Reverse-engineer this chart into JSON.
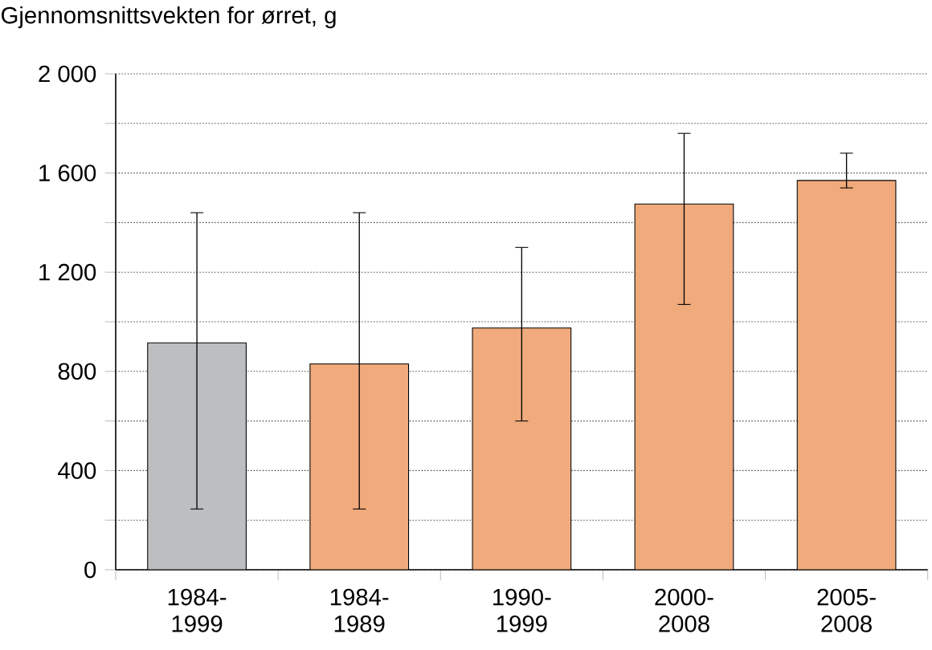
{
  "chart_data": {
    "type": "bar",
    "ylabel": "Gjennomsnittsvekten for ørret, g",
    "categories": [
      "1984-1999",
      "1984-1989",
      "1990-1999",
      "2000-2008",
      "2005-2008"
    ],
    "values": [
      915,
      830,
      975,
      1475,
      1570
    ],
    "colors": [
      "#bcbec0",
      "#f0aa7b",
      "#f0aa7b",
      "#f0aa7b",
      "#f0aa7b"
    ],
    "errors": [
      [
        245,
        1440
      ],
      [
        245,
        1440
      ],
      [
        600,
        1300
      ],
      [
        1070,
        1760
      ],
      [
        1540,
        1680
      ]
    ],
    "ylim": [
      0,
      2000
    ],
    "yticks": [
      0,
      {
        "value": 200,
        "label": null
      },
      400,
      {
        "value": 600,
        "label": null
      },
      800,
      {
        "value": 1000,
        "label": null
      },
      {
        "value": 1200,
        "label": "1 200"
      },
      {
        "value": 1400,
        "label": null
      },
      {
        "value": 1600,
        "label": "1 600"
      },
      {
        "value": 1800,
        "label": null
      },
      {
        "value": 2000,
        "label": "2 000"
      }
    ],
    "grid": "y"
  }
}
